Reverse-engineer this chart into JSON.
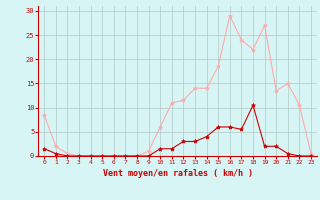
{
  "hours": [
    0,
    1,
    2,
    3,
    4,
    5,
    6,
    7,
    8,
    9,
    10,
    11,
    12,
    13,
    14,
    15,
    16,
    17,
    18,
    19,
    20,
    21,
    22,
    23
  ],
  "vent_moyen": [
    1.5,
    0.5,
    0,
    0,
    0,
    0,
    0,
    0,
    0,
    0,
    1.5,
    1.5,
    3,
    3,
    4,
    6,
    6,
    5.5,
    10.5,
    2,
    2,
    0.5,
    0,
    0
  ],
  "en_rafales": [
    8.5,
    2,
    0.5,
    0,
    0,
    0,
    0,
    0,
    0,
    1,
    6,
    11,
    11.5,
    14,
    14,
    18.5,
    29,
    24,
    22,
    27,
    13.5,
    15,
    10.5,
    0.5
  ],
  "color_moyen": "#cc0000",
  "color_rafales": "#ffaaaa",
  "bg_color": "#d8f5f5",
  "grid_color": "#b0c8c8",
  "xlabel": "Vent moyen/en rafales ( km/h )",
  "ylabel_ticks": [
    0,
    5,
    10,
    15,
    20,
    25,
    30
  ],
  "xlim": [
    -0.5,
    23.5
  ],
  "ylim": [
    0,
    31
  ]
}
